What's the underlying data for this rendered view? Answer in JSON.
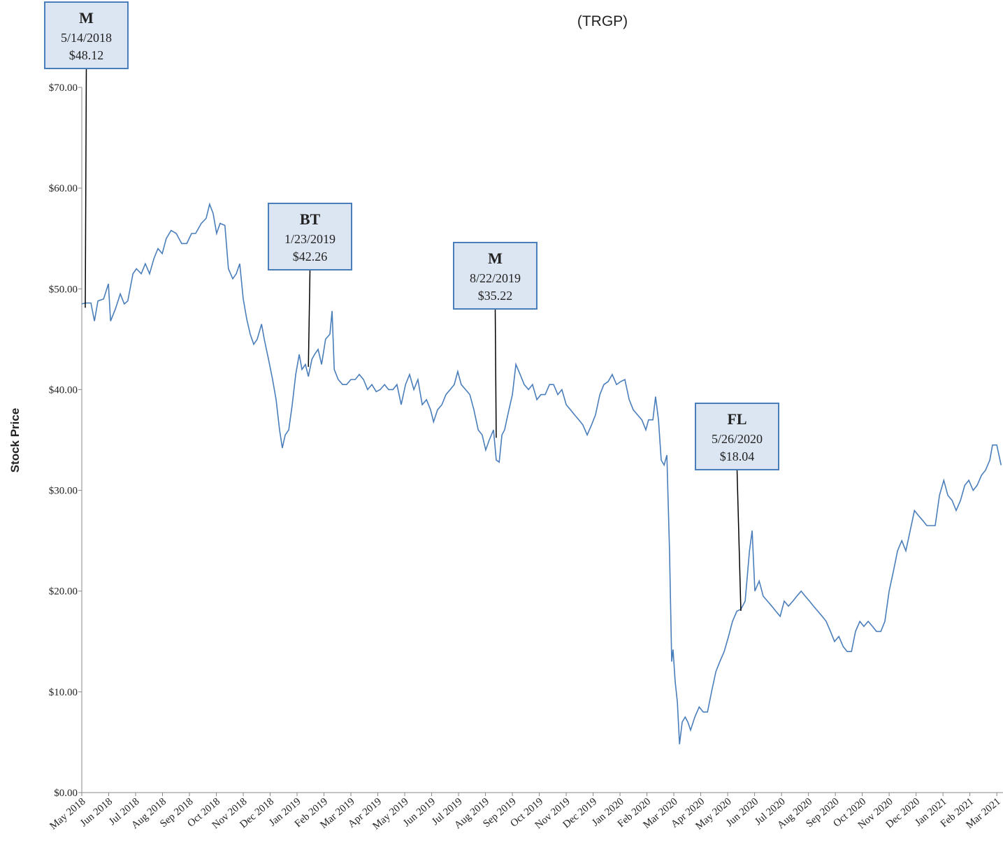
{
  "chart_data": {
    "type": "line",
    "title": "(TRGP)",
    "y_label": "Stock Price",
    "color": "#4a7ebb",
    "xlim": [
      0,
      34.23
    ],
    "ylim": [
      0,
      70
    ],
    "yticks": [
      {
        "value": 0,
        "label": "$0.00"
      },
      {
        "value": 10,
        "label": "$10.00"
      },
      {
        "value": 20,
        "label": "$20.00"
      },
      {
        "value": 30,
        "label": "$30.00"
      },
      {
        "value": 40,
        "label": "$40.00"
      },
      {
        "value": 50,
        "label": "$50.00"
      },
      {
        "value": 60,
        "label": "$60.00"
      },
      {
        "value": 70,
        "label": "$70.00"
      }
    ],
    "xticks": [
      {
        "value": 0,
        "label": "May 2018"
      },
      {
        "value": 1,
        "label": "Jun 2018"
      },
      {
        "value": 2,
        "label": "Jul 2018"
      },
      {
        "value": 3,
        "label": "Aug 2018"
      },
      {
        "value": 4,
        "label": "Sep 2018"
      },
      {
        "value": 5,
        "label": "Oct 2018"
      },
      {
        "value": 6,
        "label": "Nov 2018"
      },
      {
        "value": 7,
        "label": "Dec 2018"
      },
      {
        "value": 8,
        "label": "Jan 2019"
      },
      {
        "value": 9,
        "label": "Feb 2019"
      },
      {
        "value": 10,
        "label": "Mar 2019"
      },
      {
        "value": 11,
        "label": "Apr 2019"
      },
      {
        "value": 12,
        "label": "May 2019"
      },
      {
        "value": 13,
        "label": "Jun 2019"
      },
      {
        "value": 14,
        "label": "Jul 2019"
      },
      {
        "value": 15,
        "label": "Aug 2019"
      },
      {
        "value": 16,
        "label": "Sep 2019"
      },
      {
        "value": 17,
        "label": "Oct 2019"
      },
      {
        "value": 18,
        "label": "Nov 2019"
      },
      {
        "value": 19,
        "label": "Dec 2019"
      },
      {
        "value": 20,
        "label": "Jan 2020"
      },
      {
        "value": 21,
        "label": "Feb 2020"
      },
      {
        "value": 22,
        "label": "Mar 2020"
      },
      {
        "value": 23,
        "label": "Apr 2020"
      },
      {
        "value": 24,
        "label": "May 2020"
      },
      {
        "value": 25,
        "label": "Jun 2020"
      },
      {
        "value": 26,
        "label": "Jul 2020"
      },
      {
        "value": 27,
        "label": "Aug 2020"
      },
      {
        "value": 28,
        "label": "Sep 2020"
      },
      {
        "value": 29,
        "label": "Oct 2020"
      },
      {
        "value": 30,
        "label": "Nov 2020"
      },
      {
        "value": 31,
        "label": "Dec 2020"
      },
      {
        "value": 32,
        "label": "Jan 2021"
      },
      {
        "value": 33,
        "label": "Feb 2021"
      },
      {
        "value": 34,
        "label": "Mar 2021"
      }
    ],
    "x": [
      0.0,
      0.13,
      0.34,
      0.47,
      0.6,
      0.81,
      0.99,
      1.07,
      1.25,
      1.43,
      1.58,
      1.71,
      1.9,
      2.03,
      2.21,
      2.36,
      2.52,
      2.68,
      2.83,
      2.99,
      3.14,
      3.32,
      3.51,
      3.71,
      3.9,
      4.08,
      4.23,
      4.44,
      4.62,
      4.75,
      4.88,
      5.01,
      5.14,
      5.32,
      5.45,
      5.61,
      5.74,
      5.87,
      6.0,
      6.13,
      6.26,
      6.39,
      6.52,
      6.68,
      6.78,
      6.94,
      7.09,
      7.22,
      7.35,
      7.45,
      7.56,
      7.69,
      7.82,
      7.95,
      8.08,
      8.18,
      8.31,
      8.42,
      8.55,
      8.65,
      8.78,
      8.91,
      9.06,
      9.22,
      9.3,
      9.38,
      9.53,
      9.69,
      9.84,
      10.0,
      10.16,
      10.31,
      10.47,
      10.62,
      10.78,
      10.94,
      11.09,
      11.25,
      11.4,
      11.56,
      11.71,
      11.87,
      12.03,
      12.18,
      12.34,
      12.49,
      12.65,
      12.81,
      12.96,
      13.07,
      13.22,
      13.38,
      13.53,
      13.69,
      13.84,
      13.97,
      14.1,
      14.26,
      14.42,
      14.57,
      14.73,
      14.88,
      15.01,
      15.14,
      15.3,
      15.4,
      15.51,
      15.61,
      15.71,
      15.87,
      16.0,
      16.13,
      16.29,
      16.44,
      16.6,
      16.75,
      16.91,
      17.06,
      17.22,
      17.38,
      17.53,
      17.69,
      17.84,
      18.0,
      18.16,
      18.31,
      18.47,
      18.62,
      18.78,
      18.94,
      19.09,
      19.25,
      19.4,
      19.56,
      19.71,
      19.87,
      20.03,
      20.18,
      20.34,
      20.49,
      20.65,
      20.81,
      20.96,
      21.06,
      21.22,
      21.32,
      21.43,
      21.53,
      21.64,
      21.74,
      21.84,
      21.92,
      21.97,
      22.05,
      22.13,
      22.21,
      22.31,
      22.42,
      22.52,
      22.62,
      22.78,
      22.94,
      23.09,
      23.25,
      23.4,
      23.56,
      23.71,
      23.87,
      24.03,
      24.18,
      24.34,
      24.49,
      24.65,
      24.81,
      24.91,
      25.01,
      25.17,
      25.32,
      25.48,
      25.64,
      25.79,
      25.95,
      26.1,
      26.26,
      26.42,
      26.57,
      26.73,
      26.88,
      27.04,
      27.19,
      27.35,
      27.51,
      27.66,
      27.82,
      27.97,
      28.13,
      28.29,
      28.44,
      28.6,
      28.75,
      28.91,
      29.06,
      29.22,
      29.38,
      29.53,
      29.69,
      29.84,
      30.0,
      30.16,
      30.31,
      30.47,
      30.62,
      30.78,
      30.94,
      31.09,
      31.25,
      31.4,
      31.56,
      31.71,
      31.87,
      32.03,
      32.18,
      32.34,
      32.49,
      32.65,
      32.81,
      32.96,
      33.12,
      33.27,
      33.43,
      33.58,
      33.74,
      33.84,
      34.0,
      34.16
    ],
    "values": [
      48.5,
      48.6,
      48.6,
      46.8,
      48.8,
      49,
      50.5,
      46.8,
      48,
      49.5,
      48.5,
      48.8,
      51.5,
      52,
      51.5,
      52.5,
      51.5,
      53,
      54,
      53.5,
      55,
      55.8,
      55.5,
      54.5,
      54.5,
      55.5,
      55.5,
      56.5,
      57,
      58.4,
      57.5,
      55.5,
      56.5,
      56.3,
      52,
      51,
      51.5,
      52.5,
      49,
      47,
      45.5,
      44.5,
      45,
      46.5,
      45,
      43,
      41,
      39,
      36,
      34.2,
      35.5,
      36,
      38.5,
      41.5,
      43.5,
      42,
      42.5,
      41.3,
      43,
      43.5,
      44,
      42.5,
      45,
      45.5,
      47.8,
      42,
      41,
      40.5,
      40.5,
      41,
      41,
      41.5,
      41,
      40,
      40.5,
      39.8,
      40,
      40.5,
      40,
      40,
      40.5,
      38.5,
      40.5,
      41.5,
      40,
      41,
      38.5,
      39,
      38,
      36.8,
      38,
      38.5,
      39.5,
      40,
      40.5,
      41.8,
      40.5,
      40,
      39.5,
      38,
      36,
      35.5,
      34,
      35,
      36,
      33,
      32.8,
      35.5,
      36,
      38,
      39.5,
      42.5,
      41.5,
      40.5,
      40,
      40.5,
      39,
      39.5,
      39.5,
      40.5,
      40.5,
      39.5,
      40,
      38.5,
      38,
      37.5,
      37,
      36.5,
      35.5,
      36.5,
      37.5,
      39.5,
      40.5,
      40.8,
      41.5,
      40.5,
      40.8,
      41,
      39,
      38,
      37.5,
      37,
      36,
      37,
      37,
      39.3,
      37,
      33,
      32.5,
      33.5,
      24,
      13,
      14.2,
      11,
      9,
      4.8,
      7,
      7.5,
      7,
      6.2,
      7.5,
      8.5,
      8,
      8,
      10,
      12,
      13,
      14,
      15.5,
      17,
      18,
      18.2,
      19,
      24,
      26,
      20,
      21,
      19.5,
      19,
      18.5,
      18,
      17.5,
      19,
      18.5,
      19,
      19.5,
      20,
      19.5,
      19,
      18.5,
      18,
      17.5,
      17,
      16,
      15,
      15.5,
      14.5,
      14,
      14,
      16,
      17,
      16.5,
      17,
      16.5,
      16,
      16,
      17,
      20,
      22,
      24,
      25,
      24,
      26,
      28,
      27.5,
      27,
      26.5,
      26.5,
      26.5,
      29.5,
      31,
      29.5,
      29,
      28,
      29,
      30.5,
      31,
      30,
      30.5,
      31.5,
      32,
      33,
      34.5,
      34.5,
      32.5
    ],
    "annotations": [
      {
        "label": "M",
        "date": "5/14/2018",
        "x": 0.13,
        "value": 48.12,
        "value_label": "$48.12"
      },
      {
        "label": "BT",
        "date": "1/23/2019",
        "x": 8.42,
        "value": 42.26,
        "value_label": "$42.26"
      },
      {
        "label": "M",
        "date": "8/22/2019",
        "x": 15.4,
        "value": 35.22,
        "value_label": "$35.22"
      },
      {
        "label": "FL",
        "date": "5/26/2020",
        "x": 24.49,
        "value": 18.04,
        "value_label": "$18.04"
      }
    ]
  }
}
